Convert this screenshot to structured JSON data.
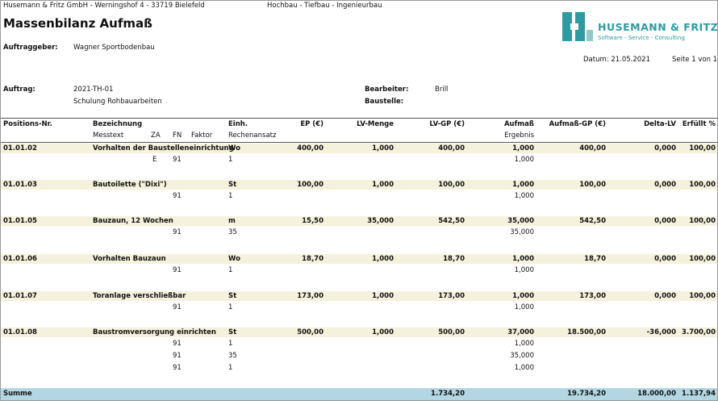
{
  "header": {
    "company_line": "Husemann & Fritz GmbH - Werningshof 4 - 33719 Bielefeld",
    "division": "Hochbau - Tiefbau - Ingenieurbau",
    "title": "Massenbilanz Aufmaß",
    "logo_name": "HUSEMANN & FRITZ",
    "logo_tagline": "Software - Service - Consulting"
  },
  "info": {
    "client_label": "Auftraggeber:",
    "client": "Wagner Sportbodenbau",
    "date": "Datum: 21.05.2021",
    "page": "Seite 1 von 1",
    "order_label": "Auftrag:",
    "order": "2021-TH-01",
    "order_desc": "Schulung Rohbauarbeiten",
    "editor_label": "Bearbeiter:",
    "editor": "Brill",
    "site_label": "Baustelle:"
  },
  "table": {
    "head": {
      "pos": "Positions-Nr.",
      "desc": "Bezeichnung",
      "unit": "Einh.",
      "ep": "EP (€)",
      "lv_qty": "LV-Menge",
      "lv_gp": "LV-GP (€)",
      "qty": "Aufmaß",
      "qty_gp": "Aufmaß-GP (€)",
      "delta": "Delta-LV",
      "fulfilled": "Erfüllt %"
    },
    "subhead": {
      "text": "Messtext",
      "za": "ZA",
      "fn": "FN",
      "factor": "Faktor",
      "formula": "Rechenansatz",
      "result": "Ergebnis"
    },
    "positions": [
      {
        "pos": "01.01.02",
        "desc": "Vorhalten der Baustelleneinrichtung",
        "unit": "Wo",
        "ep": "400,00",
        "lv_qty": "1,000",
        "lv_gp": "400,00",
        "qty": "1,000",
        "qty_gp": "400,00",
        "delta": "0,000",
        "fulfilled": "100,00",
        "lines": [
          {
            "za": "E",
            "fn": "91",
            "formula": "1",
            "result": "1,000"
          }
        ]
      },
      {
        "pos": "01.01.03",
        "desc": "Bautoilette  (\"Dixi\")",
        "unit": "St",
        "ep": "100,00",
        "lv_qty": "1,000",
        "lv_gp": "100,00",
        "qty": "1,000",
        "qty_gp": "100,00",
        "delta": "0,000",
        "fulfilled": "100,00",
        "lines": [
          {
            "fn": "91",
            "formula": "1",
            "result": "1,000"
          }
        ]
      },
      {
        "pos": "01.01.05",
        "desc": "Bauzaun, 12 Wochen",
        "unit": "m",
        "ep": "15,50",
        "lv_qty": "35,000",
        "lv_gp": "542,50",
        "qty": "35,000",
        "qty_gp": "542,50",
        "delta": "0,000",
        "fulfilled": "100,00",
        "lines": [
          {
            "fn": "91",
            "formula": "35",
            "result": "35,000"
          }
        ]
      },
      {
        "pos": "01.01.06",
        "desc": "Vorhalten Bauzaun",
        "unit": "Wo",
        "ep": "18,70",
        "lv_qty": "1,000",
        "lv_gp": "18,70",
        "qty": "1,000",
        "qty_gp": "18,70",
        "delta": "0,000",
        "fulfilled": "100,00",
        "lines": [
          {
            "fn": "91",
            "formula": "1",
            "result": "1,000"
          }
        ]
      },
      {
        "pos": "01.01.07",
        "desc": "Toranlage verschließbar",
        "unit": "St",
        "ep": "173,00",
        "lv_qty": "1,000",
        "lv_gp": "173,00",
        "qty": "1,000",
        "qty_gp": "173,00",
        "delta": "0,000",
        "fulfilled": "100,00",
        "lines": [
          {
            "fn": "91",
            "formula": "1",
            "result": "1,000"
          }
        ]
      },
      {
        "pos": "01.01.08",
        "desc": "Baustromversorgung einrichten",
        "unit": "St",
        "ep": "500,00",
        "lv_qty": "1,000",
        "lv_gp": "500,00",
        "qty": "37,000",
        "qty_gp": "18.500,00",
        "delta": "-36,000",
        "fulfilled": "3.700,00",
        "lines": [
          {
            "fn": "91",
            "formula": "1",
            "result": "1,000"
          },
          {
            "fn": "91",
            "formula": "35",
            "result": "35,000"
          },
          {
            "fn": "91",
            "formula": "1",
            "result": "1,000"
          }
        ]
      }
    ],
    "sum": {
      "label": "Summe",
      "lv_gp": "1.734,20",
      "qty_gp": "19.734,20",
      "delta": "18.000,00",
      "fulfilled": "1.137,94"
    }
  }
}
